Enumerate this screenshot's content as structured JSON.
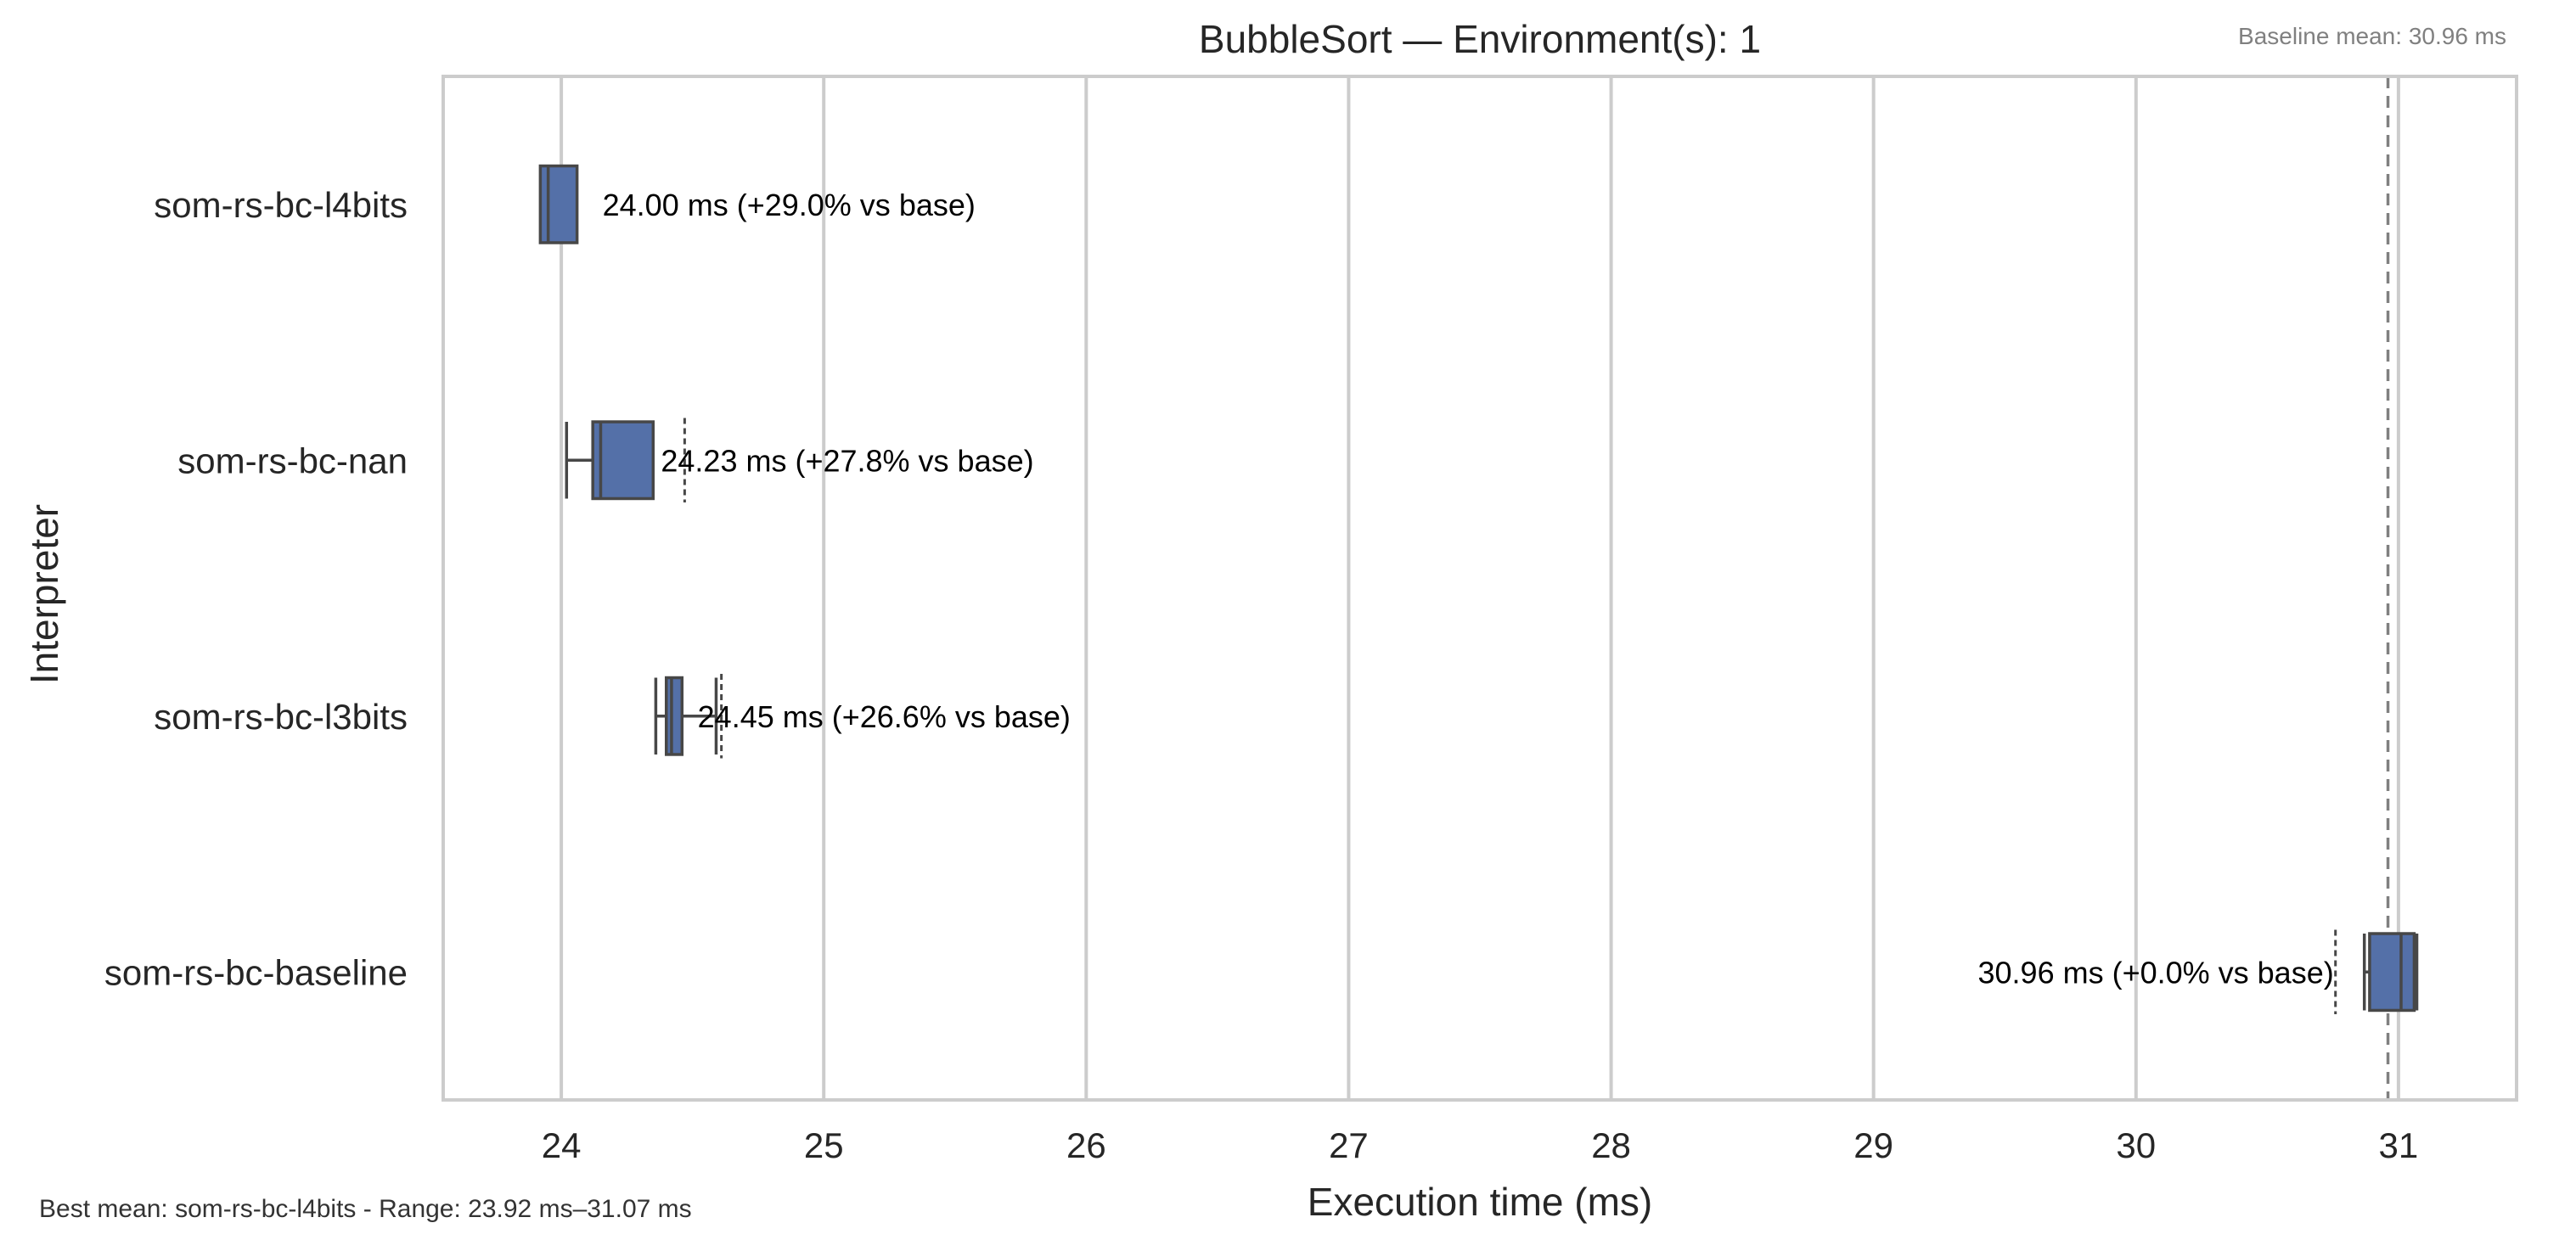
{
  "chart_data": {
    "type": "box",
    "orientation": "horizontal",
    "title": "BubbleSort — Environment(s): 1",
    "xlabel": "Execution time (ms)",
    "ylabel": "Interpreter",
    "xlim": [
      23.55,
      31.45
    ],
    "xticks": [
      24,
      25,
      26,
      27,
      28,
      29,
      30,
      31
    ],
    "grid": "vertical",
    "box_color": "#5470a8",
    "edge_color": "#474747",
    "categories": [
      "som-rs-bc-l4bits",
      "som-rs-bc-nan",
      "som-rs-bc-l3bits",
      "som-rs-bc-baseline"
    ],
    "boxes": [
      {
        "name": "som-rs-bc-l4bits",
        "whisker_low": 23.92,
        "q1": 23.92,
        "median": 23.95,
        "q3": 24.06,
        "whisker_high": 24.06,
        "outliers": [],
        "label": "24.00 ms  (+29.0% vs base)"
      },
      {
        "name": "som-rs-bc-nan",
        "whisker_low": 24.02,
        "q1": 24.12,
        "median": 24.15,
        "q3": 24.35,
        "whisker_high": 24.35,
        "outliers": [
          24.47
        ],
        "label": "24.23 ms  (+27.8% vs base)"
      },
      {
        "name": "som-rs-bc-l3bits",
        "whisker_low": 24.36,
        "q1": 24.4,
        "median": 24.42,
        "q3": 24.46,
        "whisker_high": 24.59,
        "outliers": [
          24.61
        ],
        "label": "24.45 ms  (+26.6% vs base)"
      },
      {
        "name": "som-rs-bc-baseline",
        "whisker_low": 30.87,
        "q1": 30.89,
        "median": 31.01,
        "q3": 31.06,
        "whisker_high": 31.07,
        "outliers": [
          30.76
        ],
        "label": "30.96 ms  (+0.0% vs base)"
      }
    ],
    "baseline": {
      "value": 30.96,
      "label": "Baseline mean: 30.96 ms",
      "color": "#808080"
    },
    "footer": "Best mean: som-rs-bc-l4bits - Range: 23.92 ms–31.07 ms"
  }
}
